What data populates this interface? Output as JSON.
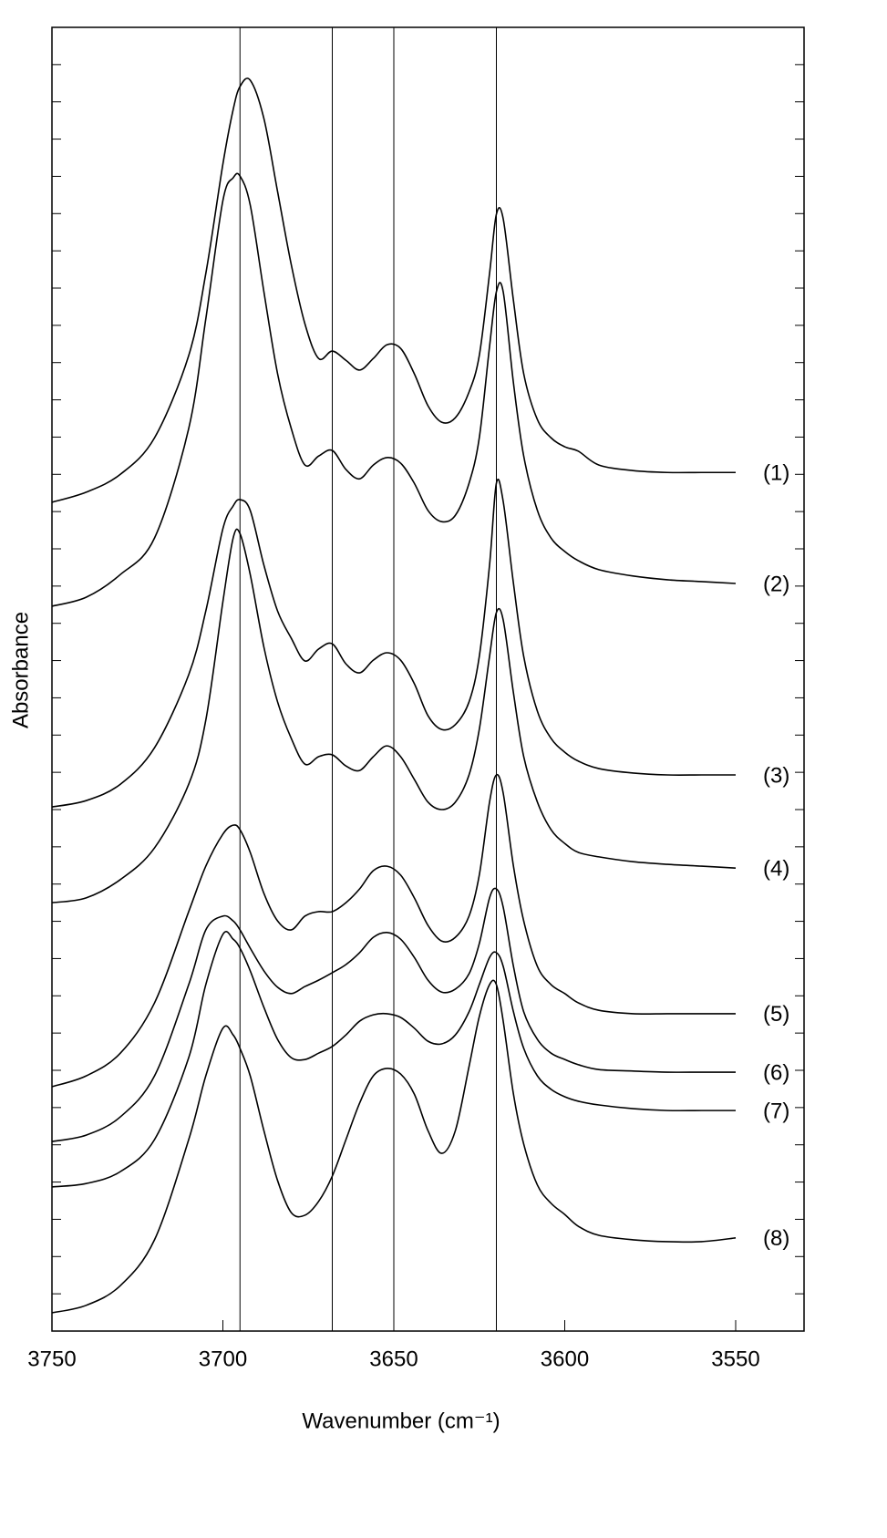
{
  "chart_data": {
    "type": "line",
    "xlabel": "Wavenumber (cm⁻¹)",
    "ylabel": "Absorbance",
    "xlim": [
      3750,
      3530
    ],
    "xticks": [
      3750,
      3700,
      3650,
      3600,
      3550
    ],
    "ylim": [
      0,
      35
    ],
    "yticks": [
      0,
      1,
      2,
      3,
      4,
      5,
      6,
      7,
      8,
      9,
      10,
      11,
      12,
      13,
      14,
      15,
      16,
      17,
      18,
      19,
      20,
      21,
      22,
      23,
      24,
      25,
      26,
      27,
      28,
      29,
      30,
      31,
      32,
      33,
      34,
      35
    ],
    "vlines": [
      3695,
      3668,
      3650,
      3620
    ],
    "x": [
      3750,
      3740,
      3730,
      3720,
      3710,
      3705,
      3700,
      3697,
      3695,
      3692,
      3688,
      3684,
      3680,
      3676,
      3672,
      3668,
      3664,
      3660,
      3656,
      3652,
      3648,
      3644,
      3640,
      3636,
      3632,
      3628,
      3625,
      3622,
      3620,
      3618,
      3615,
      3612,
      3608,
      3604,
      3600,
      3596,
      3590,
      3580,
      3570,
      3560,
      3550
    ],
    "series": [
      {
        "name": "(1)",
        "color": "#000000",
        "values": [
          22.25,
          22.52,
          23.0,
          23.98,
          26.19,
          28.39,
          31.33,
          32.79,
          33.41,
          33.58,
          32.55,
          30.59,
          28.63,
          27.04,
          26.11,
          26.31,
          26.06,
          25.8,
          26.11,
          26.48,
          26.38,
          25.7,
          24.84,
          24.4,
          24.52,
          25.21,
          26.19,
          28.39,
          29.98,
          29.86,
          27.66,
          25.7,
          24.47,
          23.98,
          23.74,
          23.62,
          23.25,
          23.1,
          23.05,
          23.05,
          23.05
        ]
      },
      {
        "name": "(2)",
        "color": "#000000",
        "values": [
          19.46,
          19.7,
          20.31,
          21.29,
          24.23,
          27.17,
          30.35,
          30.96,
          31.01,
          30.23,
          27.9,
          25.7,
          24.23,
          23.25,
          23.49,
          23.64,
          23.13,
          22.88,
          23.25,
          23.45,
          23.3,
          22.76,
          22.03,
          21.73,
          21.9,
          22.76,
          23.98,
          26.43,
          27.9,
          27.9,
          25.45,
          23.49,
          22.03,
          21.29,
          20.93,
          20.68,
          20.44,
          20.27,
          20.17,
          20.12,
          20.07
        ]
      },
      {
        "name": "(3)",
        "color": "#000000",
        "values": [
          14.07,
          14.24,
          14.68,
          15.66,
          17.62,
          19.33,
          21.54,
          22.15,
          22.32,
          22.03,
          20.56,
          19.33,
          18.6,
          17.99,
          18.31,
          18.45,
          17.91,
          17.67,
          18.01,
          18.21,
          18.01,
          17.38,
          16.52,
          16.15,
          16.28,
          16.89,
          18.11,
          20.56,
          22.76,
          22.27,
          20.07,
          18.11,
          16.64,
          15.91,
          15.54,
          15.3,
          15.1,
          14.98,
          14.93,
          14.93,
          14.93
        ]
      },
      {
        "name": "(4)",
        "color": "#000000",
        "values": [
          11.5,
          11.63,
          12.12,
          12.97,
          14.68,
          16.4,
          19.58,
          21.29,
          21.41,
          20.31,
          18.36,
          16.89,
          15.91,
          15.22,
          15.42,
          15.47,
          15.17,
          15.05,
          15.42,
          15.71,
          15.42,
          14.81,
          14.2,
          14.0,
          14.2,
          14.93,
          16.15,
          18.11,
          19.29,
          19.09,
          17.13,
          15.42,
          14.2,
          13.46,
          13.09,
          12.85,
          12.73,
          12.6,
          12.53,
          12.48,
          12.43
        ]
      },
      {
        "name": "(5)",
        "color": "#000000",
        "values": [
          6.56,
          6.85,
          7.46,
          8.81,
          11.26,
          12.48,
          13.34,
          13.58,
          13.46,
          12.85,
          11.75,
          11.01,
          10.77,
          11.14,
          11.26,
          11.26,
          11.5,
          11.87,
          12.36,
          12.48,
          12.24,
          11.63,
          10.89,
          10.47,
          10.57,
          11.14,
          12.24,
          14.2,
          14.93,
          14.44,
          12.48,
          11.01,
          9.79,
          9.3,
          9.06,
          8.81,
          8.61,
          8.52,
          8.52,
          8.52,
          8.52
        ]
      },
      {
        "name": "(6)",
        "color": "#000000",
        "values": [
          5.09,
          5.26,
          5.75,
          6.85,
          9.3,
          10.77,
          11.14,
          11.01,
          10.77,
          10.28,
          9.67,
          9.23,
          9.06,
          9.25,
          9.42,
          9.62,
          9.84,
          10.16,
          10.57,
          10.7,
          10.52,
          10.03,
          9.42,
          9.1,
          9.18,
          9.59,
          10.4,
          11.63,
          11.87,
          11.38,
          9.79,
          8.57,
          7.83,
          7.46,
          7.29,
          7.15,
          7.02,
          6.98,
          6.95,
          6.95,
          6.95
        ]
      },
      {
        "name": "(7)",
        "color": "#000000",
        "values": [
          3.87,
          3.96,
          4.28,
          5.14,
          7.34,
          9.3,
          10.65,
          10.52,
          10.28,
          9.67,
          8.69,
          7.83,
          7.34,
          7.29,
          7.46,
          7.64,
          7.95,
          8.32,
          8.49,
          8.52,
          8.42,
          8.13,
          7.78,
          7.71,
          7.95,
          8.57,
          9.3,
          10.03,
          10.16,
          9.79,
          8.57,
          7.59,
          6.85,
          6.49,
          6.29,
          6.17,
          6.07,
          5.97,
          5.92,
          5.92,
          5.92
        ]
      },
      {
        "name": "(8)",
        "color": "#000000",
        "values": [
          0.49,
          0.69,
          1.22,
          2.45,
          5.14,
          6.85,
          8.13,
          7.95,
          7.59,
          6.85,
          5.38,
          4.04,
          3.18,
          3.11,
          3.48,
          4.16,
          5.14,
          6.12,
          6.85,
          7.05,
          6.9,
          6.36,
          5.38,
          4.77,
          5.38,
          7.1,
          8.44,
          9.3,
          9.3,
          8.32,
          6.36,
          5.02,
          3.92,
          3.43,
          3.13,
          2.81,
          2.57,
          2.45,
          2.4,
          2.4,
          2.5
        ]
      }
    ]
  }
}
